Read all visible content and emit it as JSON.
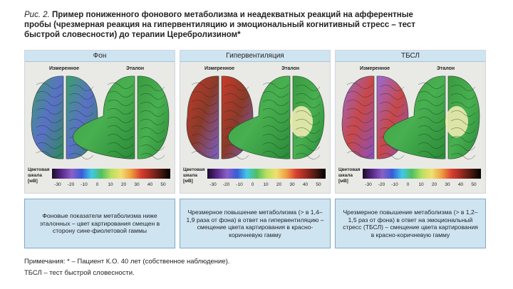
{
  "figure": {
    "label": "Рис. 2.",
    "title": "Пример пониженного фонового метаболизма и неадекватных реакций на афферентные пробы (чрезмерная реакция на гипервентиляцию и эмоциональный когнитивный стресс – тест быстрой словесности) до терапии Церебролизином*"
  },
  "scale": {
    "label": "Цветовая шкала [мВ]",
    "ticks": [
      "-30",
      "-20",
      "-10",
      "0",
      "10",
      "20",
      "30",
      "40",
      "50"
    ]
  },
  "panels": [
    {
      "header": "Фон",
      "measured": "Измеренное",
      "reference": "Эталон",
      "description": "Фоновые показатели метаболизма ниже эталонных – цвет картирования смещен в сторону сине-фиолетовой гаммы"
    },
    {
      "header": "Гипервентиляция",
      "measured": "Измеренное",
      "reference": "Эталон",
      "description": "Чрезмерное повышение метаболизма (> в 1,4–1,9 раза от фона) в ответ на гипервентиляцию – смещение цвета картирования в красно-коричневую гамму"
    },
    {
      "header": "ТБСЛ",
      "measured": "Измеренное",
      "reference": "Эталон",
      "description": "Чрезмерное повышение метаболизма (> в 1,2–1,5 раз от фона) в ответ на эмоциональный стресс (ТБСЛ) – смещение цвета картирования в красно-коричневую гамму"
    }
  ],
  "notes": [
    "Примечания: * – Пациент К.О. 40 лет (собственное наблюдение).",
    "ТБСЛ – тест быстрой словесности."
  ]
}
